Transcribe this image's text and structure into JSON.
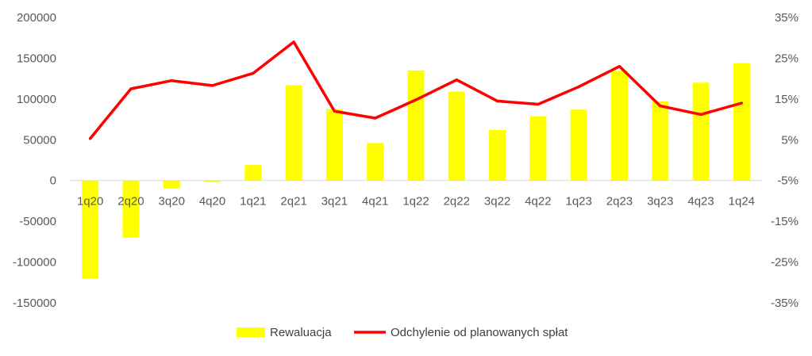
{
  "chart_data": {
    "type": "bar+line",
    "categories": [
      "1q20",
      "2q20",
      "3q20",
      "4q20",
      "1q21",
      "2q21",
      "3q21",
      "4q21",
      "1q22",
      "2q22",
      "3q22",
      "4q22",
      "1q23",
      "2q23",
      "3q23",
      "4q23",
      "1q24"
    ],
    "series": [
      {
        "name": "Rewaluacja",
        "type": "bar",
        "axis": "left",
        "color": "#FFFF00",
        "values": [
          -120000,
          -70000,
          -10000,
          -2000,
          19000,
          117000,
          88000,
          46000,
          135000,
          109000,
          62000,
          79000,
          87000,
          135000,
          97000,
          120000,
          144000
        ]
      },
      {
        "name": "Odchylenie od planowanych spłat",
        "type": "line",
        "axis": "right",
        "color": "#FF0000",
        "values": [
          0.053,
          0.175,
          0.195,
          0.183,
          0.213,
          0.29,
          0.12,
          0.103,
          0.148,
          0.197,
          0.145,
          0.137,
          0.18,
          0.23,
          0.133,
          0.112,
          0.14
        ]
      }
    ],
    "y_left": {
      "ylim": [
        -150000,
        200000
      ],
      "ticks": [
        200000,
        150000,
        100000,
        50000,
        0,
        -50000,
        -100000,
        -150000
      ],
      "tick_labels": [
        "200000",
        "150000",
        "100000",
        "50000",
        "0",
        "-50000",
        "-100000",
        "-150000"
      ]
    },
    "y_right": {
      "ylim": [
        -0.35,
        0.35
      ],
      "ticks": [
        0.35,
        0.25,
        0.15,
        0.05,
        -0.05,
        -0.15,
        -0.25,
        -0.35
      ],
      "tick_labels": [
        "35%",
        "25%",
        "15%",
        "5%",
        "-5%",
        "-15%",
        "-25%",
        "-35%"
      ]
    },
    "title": "",
    "xlabel": "",
    "ylabel": "",
    "grid": false,
    "legend": {
      "position": "bottom",
      "items": [
        "Rewaluacja",
        "Odchylenie od planowanych spłat"
      ]
    }
  }
}
